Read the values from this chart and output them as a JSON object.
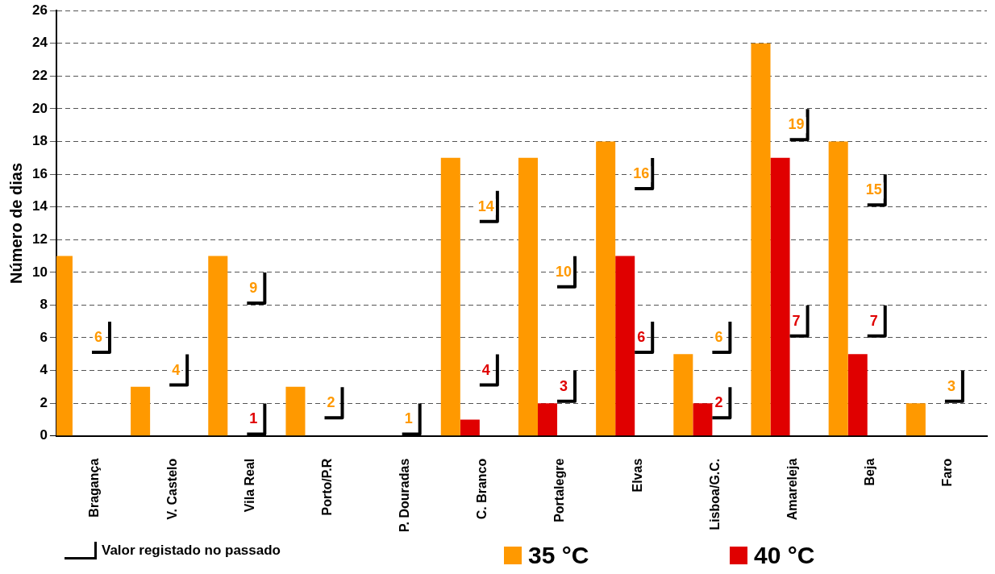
{
  "chart_data": {
    "type": "bar",
    "ylabel": "Número de dias",
    "categories": [
      "Bragança",
      "V. Castelo",
      "Vila Real",
      "Porto/P.R",
      "P. Douradas",
      "C. Branco",
      "Portalegre",
      "Elvas",
      "Lisboa/G.C.",
      "Amareleja",
      "Beja",
      "Faro"
    ],
    "series": [
      {
        "name": "35 °C",
        "type": "bar",
        "color": "#ff9900",
        "values": [
          11,
          3,
          11,
          3,
          0,
          17,
          17,
          18,
          5,
          24,
          18,
          2
        ]
      },
      {
        "name": "40 °C",
        "type": "bar",
        "color": "#e00000",
        "values": [
          0,
          0,
          0,
          0,
          0,
          1,
          2,
          11,
          2,
          17,
          5,
          0
        ]
      },
      {
        "name": "Valor registado no passado",
        "type": "scatter",
        "color": "#000000",
        "x": [
          "Bragança",
          "V. Castelo",
          "Vila Real",
          "Porto/P.R",
          "P. Douradas",
          "C. Branco",
          "Portalegre",
          "Elvas",
          "Lisboa/G.C.",
          "Amareleja",
          "Beja",
          "Faro"
        ],
        "values": [
          6,
          4,
          9,
          2,
          1,
          14,
          10,
          16,
          6,
          19,
          15,
          3
        ],
        "value_labels": [
          "6",
          "4",
          "9",
          "2",
          "1",
          "14",
          "10",
          "16",
          "6",
          "19",
          "15",
          "3"
        ]
      },
      {
        "type": "scatter",
        "color": "#000000",
        "x": [
          "Vila Real",
          "C. Branco",
          "Portalegre",
          "Elvas",
          "Lisboa/G.C.",
          "Amareleja",
          "Beja"
        ],
        "values": [
          1,
          4,
          3,
          6,
          2,
          7,
          7
        ],
        "value_labels": [
          "1",
          "4",
          "3",
          "6",
          "2",
          "7",
          "7"
        ]
      }
    ],
    "ylim": [
      0,
      26
    ],
    "yticks": [
      0,
      2,
      4,
      6,
      8,
      10,
      12,
      14,
      16,
      18,
      20,
      22,
      24,
      26
    ],
    "grid": "y",
    "legend": "bottom"
  }
}
